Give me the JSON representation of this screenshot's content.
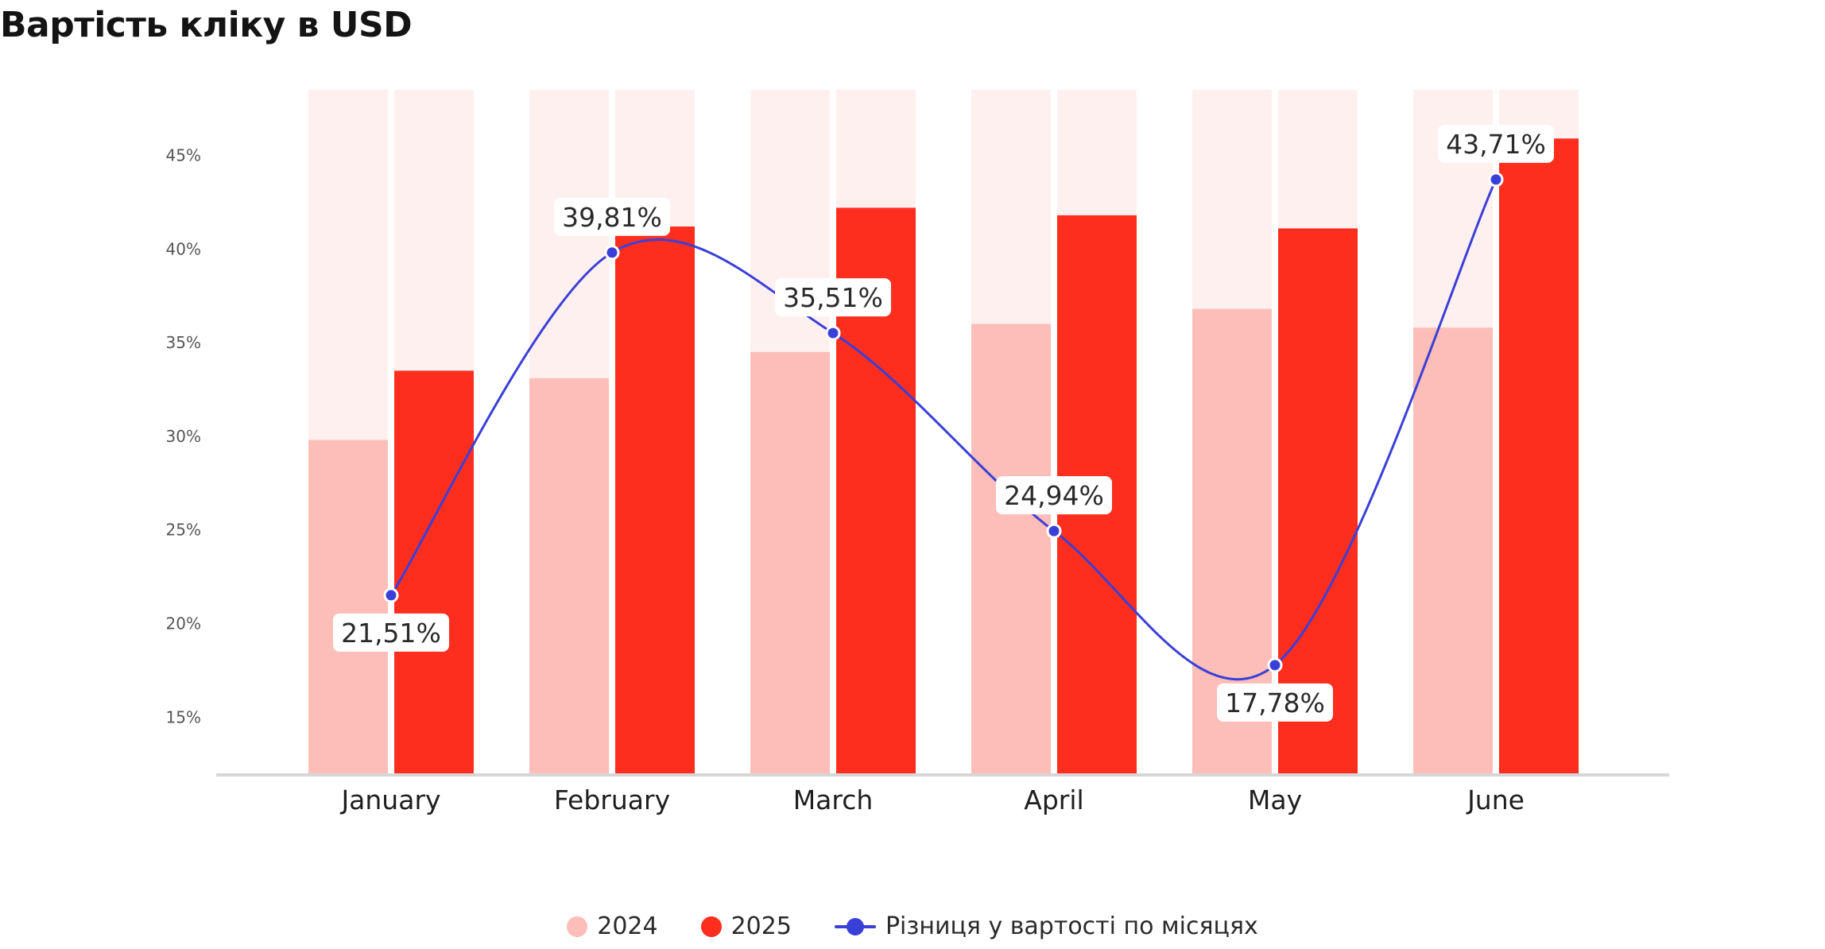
{
  "title": "Вартість кліку в USD",
  "colors": {
    "bg_column": "#fff0f0",
    "series_2024": "#fdbdb8",
    "series_2025": "#fe2e1e",
    "line": "#3a3fd8",
    "axis": "#d6d6d6"
  },
  "legend": {
    "item_2024": "2024",
    "item_2025": "2025",
    "item_line": "Різниця у вартості по місяцях"
  },
  "chart_data": {
    "type": "bar",
    "title": "Вартість кліку в USD",
    "categories": [
      "January",
      "February",
      "March",
      "April",
      "May",
      "June"
    ],
    "y_ticks": [
      "15%",
      "20%",
      "25%",
      "30%",
      "35%",
      "40%",
      "45%"
    ],
    "ylim": [
      12,
      48.5
    ],
    "grid": false,
    "legend_position": "bottom-center",
    "series": [
      {
        "name": "2024",
        "type": "bar",
        "values": [
          29.8,
          33.1,
          34.5,
          36.0,
          36.8,
          35.8
        ]
      },
      {
        "name": "2025",
        "type": "bar",
        "values": [
          33.5,
          41.2,
          42.2,
          41.8,
          41.1,
          45.9
        ]
      },
      {
        "name": "Різниця у вартості по місяцях",
        "type": "line",
        "values": [
          21.51,
          39.81,
          35.51,
          24.94,
          17.78,
          43.71
        ],
        "labels": [
          "21,51%",
          "39,81%",
          "35,51%",
          "24,94%",
          "17,78%",
          "43,71%"
        ]
      }
    ]
  }
}
